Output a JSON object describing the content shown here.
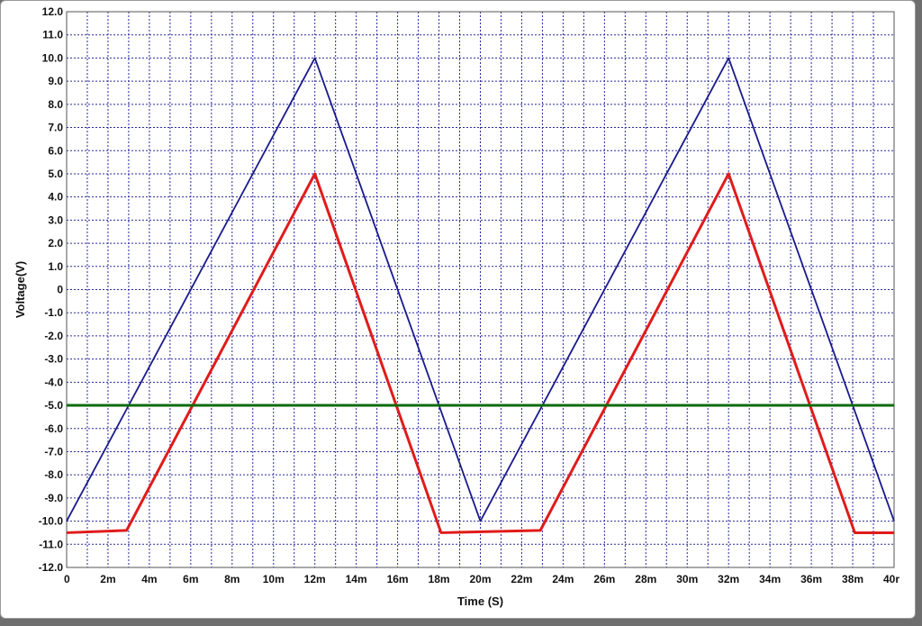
{
  "chart_data": {
    "type": "line",
    "title": "",
    "xlabel": "Time (S)",
    "ylabel": "Voltage(V)",
    "xlim": [
      0,
      40
    ],
    "ylim": [
      -12,
      12
    ],
    "x_unit_suffix": "m",
    "grid": true,
    "x_ticks": [
      "0",
      "2m",
      "4m",
      "6m",
      "8m",
      "10m",
      "12m",
      "14m",
      "16m",
      "18m",
      "20m",
      "22m",
      "24m",
      "26m",
      "28m",
      "30m",
      "32m",
      "34m",
      "36m",
      "38m",
      "40r"
    ],
    "y_ticks": [
      "12.0",
      "11.0",
      "10.0",
      "9.0",
      "8.0",
      "7.0",
      "6.0",
      "5.0",
      "4.0",
      "3.0",
      "2.0",
      "1.0",
      "0",
      "-1.0",
      "-2.0",
      "-3.0",
      "-4.0",
      "-5.0",
      "-6.0",
      "-7.0",
      "-8.0",
      "-9.0",
      "-10.0",
      "-11.0",
      "-12.0"
    ],
    "series": [
      {
        "color": "#1a1a8c",
        "x": [
          0,
          12,
          20,
          32,
          40
        ],
        "y": [
          -10,
          10,
          -10,
          10,
          -10
        ]
      },
      {
        "color": "#e01b1b",
        "x": [
          0,
          2.9,
          12,
          18.1,
          22.9,
          32,
          38.1,
          40
        ],
        "y": [
          -10.5,
          -10.4,
          5,
          -10.5,
          -10.4,
          5,
          -10.5,
          -10.5
        ]
      },
      {
        "color": "#0d6b0d",
        "x": [
          0,
          40
        ],
        "y": [
          -5,
          -5
        ]
      }
    ],
    "colors": {
      "grid": "#2a2a9a",
      "axis_box": "#555555"
    }
  }
}
